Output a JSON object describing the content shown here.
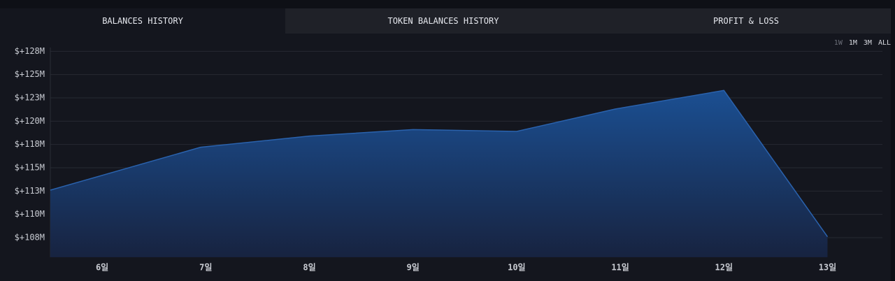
{
  "tabs": [
    "BALANCES HISTORY",
    "TOKEN BALANCES HISTORY",
    "PROFIT & LOSS"
  ],
  "ranges": [
    "1W",
    "1M",
    "3M",
    "ALL"
  ],
  "chart_data": {
    "type": "area",
    "color": "#2a62ad",
    "grid": true,
    "x": [
      5.5,
      6.95,
      8,
      9,
      10,
      10.95,
      12,
      13
    ],
    "values": [
      112.6,
      117.2,
      118.4,
      119.1,
      118.9,
      121.3,
      123.3,
      107.6
    ],
    "xlim": [
      5.5,
      13.53
    ],
    "xticks": [
      {
        "value": 6,
        "label": "6일"
      },
      {
        "value": 7,
        "label": "7일"
      },
      {
        "value": 8,
        "label": "8일"
      },
      {
        "value": 9,
        "label": "9일"
      },
      {
        "value": 10,
        "label": "10일"
      },
      {
        "value": 11,
        "label": "11일"
      },
      {
        "value": 12,
        "label": "12일"
      },
      {
        "value": 13,
        "label": "13일"
      }
    ],
    "ylim": [
      105.4,
      127.9
    ],
    "yticks": [
      {
        "value": 127.5,
        "label": "$+128M"
      },
      {
        "value": 125,
        "label": "$+125M"
      },
      {
        "value": 122.5,
        "label": "$+123M"
      },
      {
        "value": 120,
        "label": "$+120M"
      },
      {
        "value": 117.5,
        "label": "$+118M"
      },
      {
        "value": 115,
        "label": "$+115M"
      },
      {
        "value": 112.5,
        "label": "$+113M"
      },
      {
        "value": 110,
        "label": "$+110M"
      },
      {
        "value": 107.5,
        "label": "$+108M"
      }
    ]
  }
}
